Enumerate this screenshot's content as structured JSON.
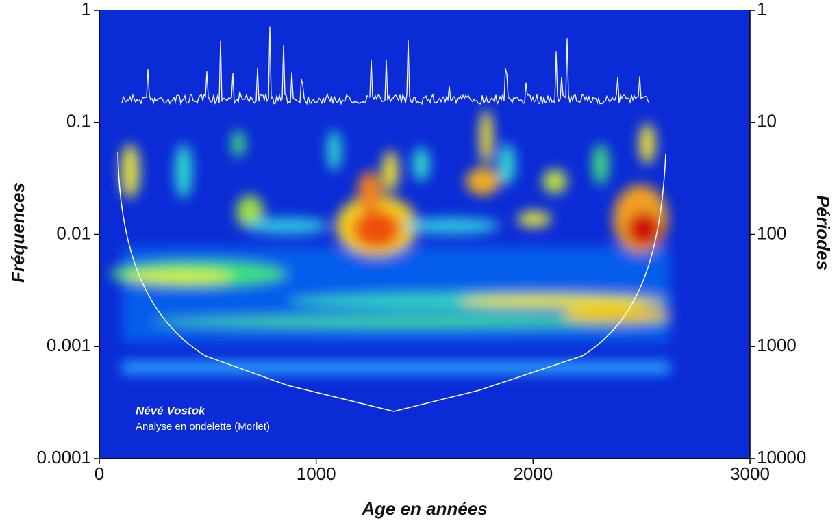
{
  "chart_data": {
    "type": "heatmap",
    "xlabel": "Age en années",
    "ylabel": "Fréquences",
    "y2label": "Périodes",
    "annotations": [
      "Névé Vostok",
      "Analyse en ondelette (Morlet)"
    ],
    "xlim": [
      0,
      3000
    ],
    "xticks": [
      0,
      1000,
      2000,
      3000
    ],
    "ylim": [
      0.0001,
      1
    ],
    "yticks": [
      0.0001,
      0.001,
      0.01,
      0.1,
      1
    ],
    "ylog": true,
    "y2lim": [
      10000,
      1
    ],
    "y2ticks": [
      10000,
      1000,
      100,
      10,
      1
    ],
    "y2log": true,
    "background": "#0a2bd6"
  }
}
